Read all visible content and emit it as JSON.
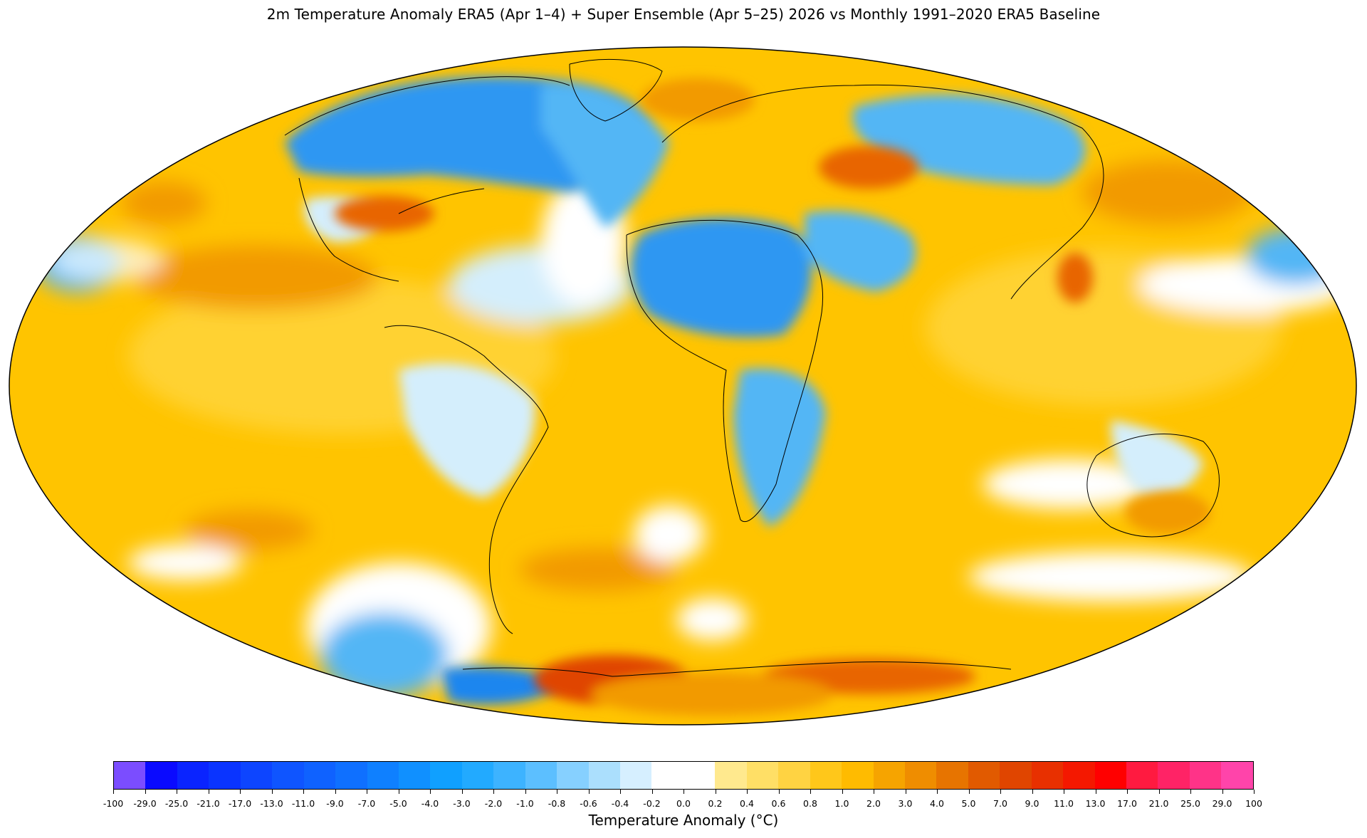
{
  "title": "2m Temperature Anomaly  ERA5 (Apr 1–4) + Super Ensemble (Apr 5–25) 2026  vs Monthly 1991–2020 ERA5 Baseline",
  "colorbar": {
    "label": "Temperature Anomaly (°C)",
    "ticks": [
      "-100",
      "-29.0",
      "-25.0",
      "-21.0",
      "-17.0",
      "-13.0",
      "-11.0",
      "-9.0",
      "-7.0",
      "-5.0",
      "-4.0",
      "-3.0",
      "-2.0",
      "-1.0",
      "-0.8",
      "-0.6",
      "-0.4",
      "-0.2",
      "0.0",
      "0.2",
      "0.4",
      "0.6",
      "0.8",
      "1.0",
      "2.0",
      "3.0",
      "4.0",
      "5.0",
      "7.0",
      "9.0",
      "11.0",
      "13.0",
      "17.0",
      "21.0",
      "25.0",
      "29.0",
      "100"
    ],
    "colors": [
      "#7b4dff",
      "#0a0aff",
      "#0a24ff",
      "#0a34ff",
      "#0d45ff",
      "#0f55ff",
      "#0f62ff",
      "#0f70ff",
      "#0f80ff",
      "#1090ff",
      "#10a0ff",
      "#22aaff",
      "#3db3ff",
      "#5cbfff",
      "#86d0ff",
      "#abdffd",
      "#d6efff",
      "#ffffff",
      "#ffffff",
      "#ffe98e",
      "#ffdf66",
      "#ffd342",
      "#ffc71a",
      "#ffbb00",
      "#f6a400",
      "#ef8d00",
      "#e77400",
      "#e15a00",
      "#e04500",
      "#e83000",
      "#f41800",
      "#ff0000",
      "#ff1a40",
      "#ff2366",
      "#ff3388",
      "#ff44aa"
    ]
  },
  "map": {
    "projection": "Mollweide",
    "palette": {
      "ocean_warm": "#ffc400",
      "ocean_warm_light": "#ffd233",
      "warm_strong": "#f29a00",
      "warm_deep": "#e86500",
      "cool_light": "#d4eefc",
      "cool": "#52b6f5",
      "cool_mid": "#2f97f2",
      "cool_deep": "#1a86ef"
    }
  }
}
